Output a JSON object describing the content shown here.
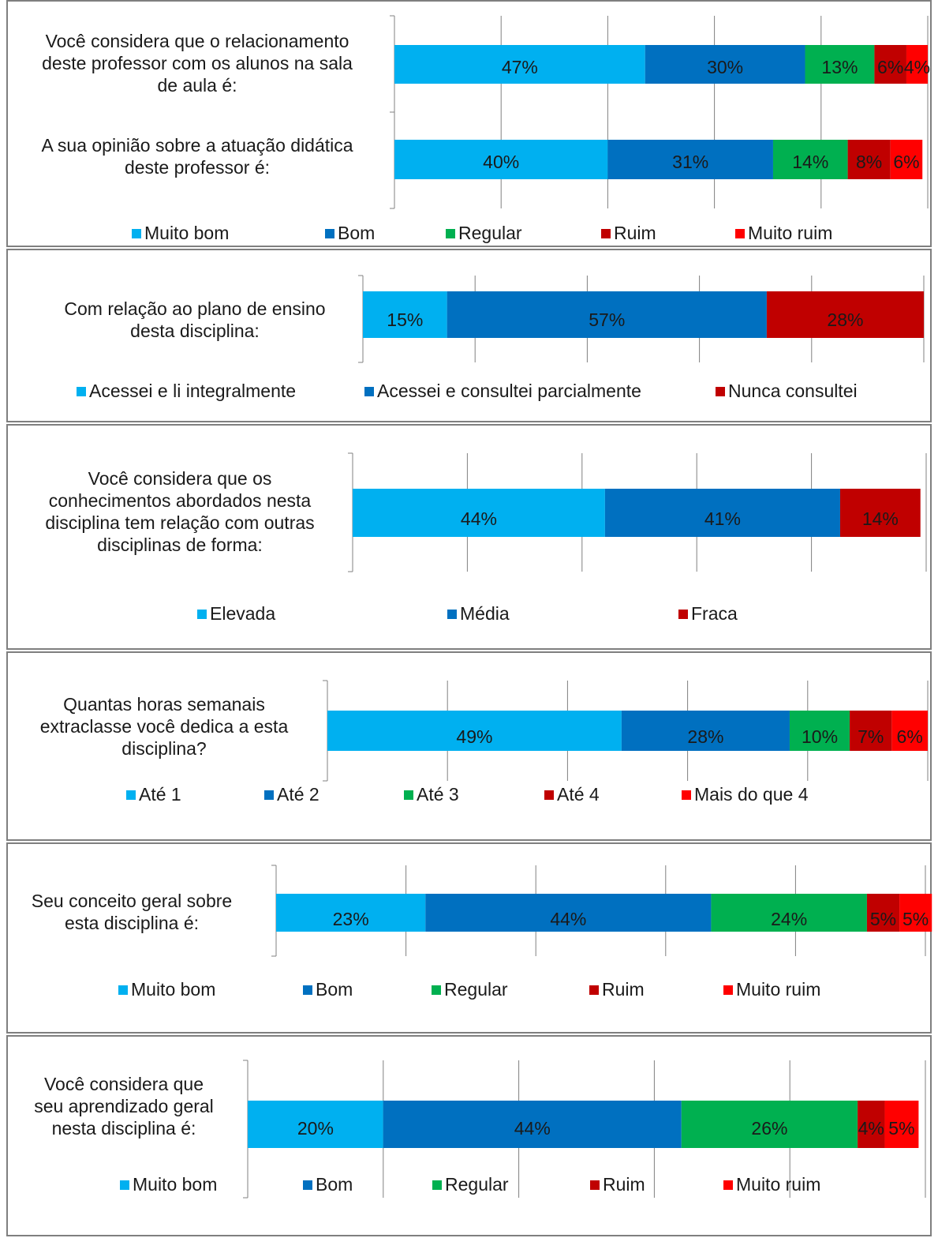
{
  "colors": {
    "light_blue": "#00B0F0",
    "blue": "#0070C0",
    "green": "#00B050",
    "dark_red": "#C00000",
    "red": "#FF0000",
    "grid": "#808080",
    "border": "#7f7f7f"
  },
  "chart_data": [
    {
      "type": "bar",
      "orientation": "horizontal",
      "stacked": true,
      "categories": [
        "Você considera que o relacionamento deste professor com os alunos na sala de aula é:",
        "A sua opinião sobre a atuação didática deste professor é:"
      ],
      "category_lines": [
        [
          "Você considera que o relacionamento",
          "deste professor com os alunos na sala",
          "de aula é:"
        ],
        [
          "A sua opinião sobre a atuação didática",
          "deste professor é:"
        ]
      ],
      "series": [
        {
          "name": "Muito bom",
          "values": [
            47,
            40
          ],
          "labels": [
            "47%",
            "40%"
          ],
          "color": "#00B0F0"
        },
        {
          "name": "Bom",
          "values": [
            30,
            31
          ],
          "labels": [
            "30%",
            "31%"
          ],
          "color": "#0070C0"
        },
        {
          "name": "Regular",
          "values": [
            13,
            14
          ],
          "labels": [
            "13%",
            "14%"
          ],
          "color": "#00B050"
        },
        {
          "name": "Ruim",
          "values": [
            6,
            8
          ],
          "labels": [
            "6%",
            "8%"
          ],
          "color": "#C00000"
        },
        {
          "name": "Muito ruim",
          "values": [
            4,
            6
          ],
          "labels": [
            "4%",
            "6%"
          ],
          "color": "#FF0000"
        }
      ],
      "xlim": [
        0,
        100
      ],
      "grid": true,
      "legend": "bottom"
    },
    {
      "type": "bar",
      "orientation": "horizontal",
      "stacked": true,
      "categories": [
        "Com relação ao plano de ensino desta disciplina:"
      ],
      "category_lines": [
        [
          "Com relação ao plano de ensino",
          "desta disciplina:"
        ]
      ],
      "series": [
        {
          "name": "Acessei e li integralmente",
          "values": [
            15
          ],
          "labels": [
            "15%"
          ],
          "color": "#00B0F0"
        },
        {
          "name": "Acessei e consultei parcialmente",
          "values": [
            57
          ],
          "labels": [
            "57%"
          ],
          "color": "#0070C0"
        },
        {
          "name": "Nunca consultei",
          "values": [
            28
          ],
          "labels": [
            "28%"
          ],
          "color": "#C00000"
        }
      ],
      "xlim": [
        0,
        100
      ],
      "grid": true,
      "legend": "bottom"
    },
    {
      "type": "bar",
      "orientation": "horizontal",
      "stacked": true,
      "categories": [
        "Você considera que os conhecimentos abordados nesta disciplina tem relação com outras disciplinas de forma:"
      ],
      "category_lines": [
        [
          "Você considera que os",
          "conhecimentos abordados nesta",
          "disciplina tem relação com outras",
          "disciplinas de forma:"
        ]
      ],
      "series": [
        {
          "name": "Elevada",
          "values": [
            44
          ],
          "labels": [
            "44%"
          ],
          "color": "#00B0F0"
        },
        {
          "name": "Média",
          "values": [
            41
          ],
          "labels": [
            "41%"
          ],
          "color": "#0070C0"
        },
        {
          "name": "Fraca",
          "values": [
            14
          ],
          "labels": [
            "14%"
          ],
          "color": "#C00000"
        }
      ],
      "xlim": [
        0,
        100
      ],
      "grid": true,
      "legend": "bottom"
    },
    {
      "type": "bar",
      "orientation": "horizontal",
      "stacked": true,
      "categories": [
        "Quantas horas semanais extraclasse você dedica a esta disciplina?"
      ],
      "category_lines": [
        [
          "Quantas horas semanais",
          "extraclasse você dedica a esta",
          "disciplina?"
        ]
      ],
      "series": [
        {
          "name": "Até 1",
          "values": [
            49
          ],
          "labels": [
            "49%"
          ],
          "color": "#00B0F0"
        },
        {
          "name": "Até 2",
          "values": [
            28
          ],
          "labels": [
            "28%"
          ],
          "color": "#0070C0"
        },
        {
          "name": "Até 3",
          "values": [
            10
          ],
          "labels": [
            "10%"
          ],
          "color": "#00B050"
        },
        {
          "name": "Até 4",
          "values": [
            7
          ],
          "labels": [
            "7%"
          ],
          "color": "#C00000"
        },
        {
          "name": "Mais do que 4",
          "values": [
            6
          ],
          "labels": [
            "6%"
          ],
          "color": "#FF0000"
        }
      ],
      "xlim": [
        0,
        100
      ],
      "grid": true,
      "legend": "bottom"
    },
    {
      "type": "bar",
      "orientation": "horizontal",
      "stacked": true,
      "categories": [
        "Seu conceito geral sobre esta disciplina é:"
      ],
      "category_lines": [
        [
          "Seu conceito geral sobre",
          "esta disciplina é:"
        ]
      ],
      "series": [
        {
          "name": "Muito bom",
          "values": [
            23
          ],
          "labels": [
            "23%"
          ],
          "color": "#00B0F0"
        },
        {
          "name": "Bom",
          "values": [
            44
          ],
          "labels": [
            "44%"
          ],
          "color": "#0070C0"
        },
        {
          "name": "Regular",
          "values": [
            24
          ],
          "labels": [
            "24%"
          ],
          "color": "#00B050"
        },
        {
          "name": "Ruim",
          "values": [
            5
          ],
          "labels": [
            "5%"
          ],
          "color": "#C00000"
        },
        {
          "name": "Muito ruim",
          "values": [
            5
          ],
          "labels": [
            "5%"
          ],
          "color": "#FF0000"
        }
      ],
      "xlim": [
        0,
        100
      ],
      "grid": true,
      "legend": "bottom"
    },
    {
      "type": "bar",
      "orientation": "horizontal",
      "stacked": true,
      "categories": [
        "Você considera que seu aprendizado geral nesta disciplina é:"
      ],
      "category_lines": [
        [
          "Você considera que",
          "seu aprendizado geral",
          "nesta disciplina é:"
        ]
      ],
      "series": [
        {
          "name": "Muito bom",
          "values": [
            20
          ],
          "labels": [
            "20%"
          ],
          "color": "#00B0F0"
        },
        {
          "name": "Bom",
          "values": [
            44
          ],
          "labels": [
            "44%"
          ],
          "color": "#0070C0"
        },
        {
          "name": "Regular",
          "values": [
            26
          ],
          "labels": [
            "26%"
          ],
          "color": "#00B050"
        },
        {
          "name": "Ruim",
          "values": [
            4
          ],
          "labels": [
            "4%"
          ],
          "color": "#C00000"
        },
        {
          "name": "Muito ruim",
          "values": [
            5
          ],
          "labels": [
            "5%"
          ],
          "color": "#FF0000"
        }
      ],
      "xlim": [
        0,
        100
      ],
      "grid": true,
      "legend": "bottom"
    }
  ]
}
